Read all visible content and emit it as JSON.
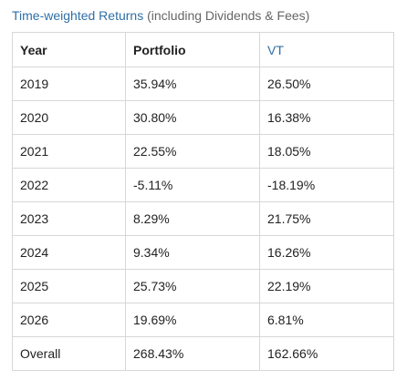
{
  "caption": {
    "title": "Time-weighted Returns",
    "note": " (including Dividends & Fees)"
  },
  "table": {
    "headers": [
      "Year",
      "Portfolio",
      "VT"
    ],
    "rows": [
      [
        "2019",
        "35.94%",
        "26.50%"
      ],
      [
        "2020",
        "30.80%",
        "16.38%"
      ],
      [
        "2021",
        "22.55%",
        "18.05%"
      ],
      [
        "2022",
        "-5.11%",
        "-18.19%"
      ],
      [
        "2023",
        "8.29%",
        "21.75%"
      ],
      [
        "2024",
        "9.34%",
        "16.26%"
      ],
      [
        "2025",
        "25.73%",
        "22.19%"
      ],
      [
        "2026",
        "19.69%",
        "6.81%"
      ],
      [
        "Overall",
        "268.43%",
        "162.66%"
      ]
    ]
  },
  "colors": {
    "link": "#2f6fa6",
    "border": "#d7d7d7",
    "muted_text": "#666666"
  }
}
